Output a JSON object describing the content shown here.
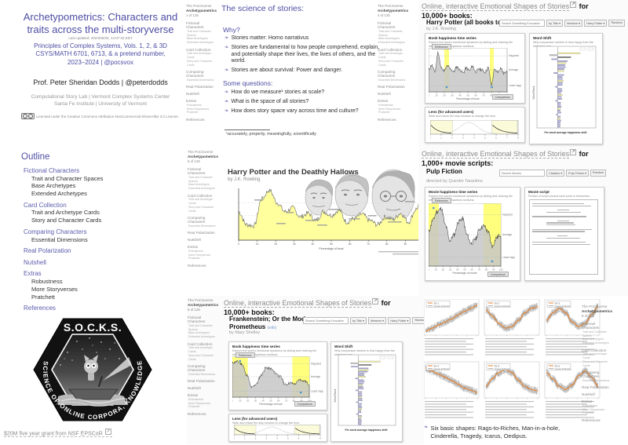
{
  "deck": {
    "sidebar": {
      "brand": "The PoCSverse",
      "deck_title": "Archetypometrics",
      "sections": [
        {
          "label": "Fictional Characters",
          "items": [
            "Trait and Character Spaces",
            "Base Archetypes",
            "Extended Archetypes"
          ]
        },
        {
          "label": "Card Collection",
          "items": [
            "Trait and Archetype Cards",
            "Story and Character Cards"
          ]
        },
        {
          "label": "Comparing Characters",
          "items": [
            "Essential Dimensions"
          ]
        },
        {
          "label": "Real Polarization",
          "items": []
        },
        {
          "label": "Nutshell",
          "items": []
        },
        {
          "label": "Extras",
          "items": [
            "Robustness",
            "More Storyverses",
            "Pratchett"
          ]
        },
        {
          "label": "References",
          "items": []
        }
      ]
    },
    "sidebar_pages": {
      "title": "1 of 125",
      "science": "4 of 125",
      "hpdh": "5 of 125",
      "frankenstein": "6 of 125",
      "shapes": "9 of 125"
    },
    "bullet_icon": "❧"
  },
  "title_slide": {
    "title": "Archetypometrics: Characters and traits across the multi-storyverse",
    "updated": "Last updated: 2024/06/25, 14:07:33 EDT",
    "course_lines": [
      "Principles of Complex Systems, Vols. 1, 2, & 3D",
      "CSYS/MATH 6701, 6713, & a pretend number,",
      "2023–2024 | @pocsvox"
    ],
    "author": "Prof. Peter Sheridan Dodds | @peterdodds",
    "affiliation1": "Computational Story Lab | Vermont Complex Systems Center",
    "affiliation2": "Santa Fe Institute | University of Vermont",
    "license": "Licensed under the Creative Commons Attribution-NonCommercial-ShareAlike 3.0 License."
  },
  "outline_slide": {
    "title": "Outline"
  },
  "socks_slide": {
    "acronym": "S.O.C.K.S.",
    "ring_text": "SCIENCE OF ONLINE CORPORA, KNOWLEDGE, AND STORIES",
    "caption": "$20M five year grant from NSF EPSCoR"
  },
  "science_slide": {
    "title": "The science of stories:",
    "why_label": "Why?",
    "why_bullets": [
      "Stories matter: Homo narrativus",
      "Stories are fundamental to how people comprehend, explain, and potentially shape their lives, the lives of others, and the world.",
      "Stories are about survival: Power and danger."
    ],
    "questions_label": "Some questions:",
    "question_bullets": [
      "How do we measure¹ stories at scale?",
      "What is the space of all stories?",
      "How does story space vary across time and culture?"
    ],
    "footnote": "¹accurately, properly, meaningfully, scientifically"
  },
  "hpdh_slide": {
    "book_title": "Harry Potter and the Deathly Hallows",
    "byline": "by J.K. Rowling",
    "xlabel": "Percentage of book"
  },
  "hedonometer": {
    "books_heading": {
      "link": "Online, interactive Emotional Shapes of Stories",
      "suffix": "for",
      "line2": "10,000+ books:"
    },
    "movies_heading": {
      "link": "Online, interactive Emotional Shapes of Stories",
      "suffix": "for",
      "line2": "1,000+ movie scripts:"
    },
    "toolbar_books": {
      "search": "Search Something Evocative",
      "filters": [
        "by Title",
        "Western",
        "Harry Potter"
      ],
      "random": "Random"
    },
    "toolbar_movies": {
      "search": "Search Movies",
      "filters": [
        "Classics",
        "Pulp Fiction"
      ],
      "random": "Random"
    },
    "window_labels": {
      "reference": "Reference",
      "comparison": "Comparison"
    },
    "levels": [
      "Happiest",
      "Average",
      "Least happy"
    ],
    "panels": {
      "ts_title_books": "Book happiness time series",
      "ts_title_movies": "Movie happiness time series",
      "ts_desc": "Explore the work's emotional dynamics by sliding and resizing the reference and comparison sections.",
      "lens_title": "Lens (for advanced users)",
      "lens_desc": "Slide and resize the stop window to change the lens.",
      "ws_title": "Word Shift",
      "ws_desc": "Why comparison section is less happy than the reference one.",
      "ws_xlabel": "Per word average happiness shift",
      "ws_ylabel": "Word Rank",
      "script_title": "Movie script",
      "script_desc": "Portion of script around each point in timeseries."
    }
  },
  "hp_online_slide": {
    "book": "Harry Potter (all books together)",
    "byline": "by J.K. Rowling"
  },
  "frankenstein_slide": {
    "book_line1": "Frankenstein; Or the Modern",
    "book_line2": "Prometheus",
    "wiki": "(wiki)",
    "byline": "by Mary Shelley"
  },
  "pulp_slide": {
    "movie": "Pulp Fiction",
    "byline": "directed by Quentin Tarantino"
  },
  "shapes_slide": {
    "bullet": "Six basic shapes: Rags-to-Riches, Man-in-a-hole, Cinderella, Tragedy, Icarus, Oedipus."
  },
  "chart_data": [
    {
      "id": "hpdh",
      "type": "area",
      "title": "Harry Potter and the Deathly Hallows happiness time series",
      "xlabel": "Percentage of book",
      "x_range": [
        0,
        100
      ],
      "values": [
        0.55,
        0.3,
        0.28,
        0.8,
        0.97,
        0.72,
        0.55,
        0.62,
        0.45,
        0.52,
        0.38,
        0.55,
        0.48,
        0.58,
        0.35,
        0.42,
        0.5,
        0.38,
        0.3,
        0.45,
        0.4,
        0.52,
        0.35,
        0.6,
        0.95
      ]
    },
    {
      "id": "hp_online_timeseries",
      "type": "area",
      "title": "Book happiness time series",
      "xlabel": "Percentage of book",
      "x_range": [
        0,
        100
      ],
      "levels": [
        "Happiest",
        "Average",
        "Least happy"
      ],
      "values": [
        0.5,
        0.62,
        0.45,
        0.95,
        0.55,
        0.48,
        0.6,
        0.52,
        0.45,
        0.58,
        0.5,
        0.42,
        0.55,
        0.48,
        0.6,
        0.45,
        0.52,
        0.5,
        0.44,
        0.56,
        0.12,
        0.5,
        0.45,
        0.55,
        0.4,
        0.5
      ],
      "windows": [
        {
          "label": "Reference",
          "x": 20,
          "w": 6
        },
        {
          "label": "Comparison",
          "x": 78,
          "w": 5
        }
      ]
    },
    {
      "id": "frankenstein_timeseries",
      "type": "area",
      "title": "Book happiness time series",
      "xlabel": "Percentage of book",
      "x_range": [
        0,
        100
      ],
      "values": [
        0.88,
        0.92,
        0.85,
        0.55,
        0.2,
        0.3,
        0.55,
        0.75,
        0.72,
        0.6,
        0.5,
        0.28,
        0.33,
        0.3,
        0.42,
        0.38,
        0.3
      ],
      "windows": [
        {
          "label": "Reference",
          "x": 0,
          "w": 20
        },
        {
          "label": "Comparison",
          "x": 78,
          "w": 22
        }
      ]
    },
    {
      "id": "pulp_timeseries",
      "type": "area",
      "title": "Movie happiness time series",
      "xlabel": "Percentage of movie",
      "x_range": [
        0,
        100
      ],
      "values": [
        0.55,
        0.75,
        0.9,
        0.95,
        0.65,
        0.4,
        0.5,
        0.72,
        0.78,
        0.5,
        0.35,
        0.42,
        0.6,
        0.65,
        0.55,
        0.3,
        0.45,
        0.5
      ],
      "windows": [
        {
          "label": "Reference",
          "x": 0,
          "w": 14
        },
        {
          "label": "Comparison",
          "x": 76,
          "w": 24
        }
      ]
    },
    {
      "id": "word_shift",
      "type": "bar",
      "title": "Word Shift",
      "xlabel": "Per word average happiness shift",
      "ylabel": "Word Rank",
      "bars": 38,
      "note": "Horizontal per-word happiness-shift bars, magnitude decreasing with word rank"
    },
    {
      "id": "lens",
      "type": "area",
      "title": "Lens (for advanced users)",
      "note": "Two selectable cream stop-windows over a faint lens distribution curve"
    },
    {
      "id": "six_shapes",
      "type": "line",
      "legend_other": "Closest 20 Books",
      "x_range": [
        0,
        1
      ],
      "panels": [
        {
          "name": "SV 1",
          "shape": "Rags-to-Riches",
          "values": [
            -0.9,
            -0.7,
            -0.5,
            -0.3,
            -0.1,
            0.15,
            0.4,
            0.6,
            0.8
          ]
        },
        {
          "name": "SV 2",
          "shape": "Man-in-a-hole",
          "values": [
            0.5,
            0.1,
            -0.4,
            -0.7,
            -0.6,
            -0.2,
            0.3,
            0.6,
            0.7
          ]
        },
        {
          "name": "SV 3",
          "shape": "Cinderella",
          "values": [
            -0.2,
            0.3,
            0.6,
            0.3,
            -0.3,
            -0.6,
            -0.4,
            0.2,
            0.7
          ]
        },
        {
          "name": "SV 4",
          "shape": "Tragedy",
          "values": [
            0.8,
            0.6,
            0.4,
            0.2,
            0.0,
            -0.25,
            -0.5,
            -0.65,
            -0.8
          ]
        },
        {
          "name": "SV 5",
          "shape": "Icarus",
          "values": [
            -0.4,
            0.1,
            0.5,
            0.7,
            0.5,
            0.0,
            -0.4,
            -0.6,
            -0.7
          ]
        },
        {
          "name": "SV 6",
          "shape": "Oedipus",
          "values": [
            0.5,
            0.1,
            -0.4,
            -0.6,
            -0.3,
            0.3,
            0.6,
            0.2,
            -0.4
          ]
        }
      ]
    }
  ],
  "colors": {
    "slide_purple": "#4d4da4",
    "outline_purple": "#5c5cae",
    "chart_yellow": "#ffff9e",
    "band_yellow": "#ffff66",
    "bar_lavender": "#a8a8e0",
    "bar_yellow": "#eeee99",
    "curve_orange": "#e8822c",
    "link_gray": "#8a8a8a"
  }
}
